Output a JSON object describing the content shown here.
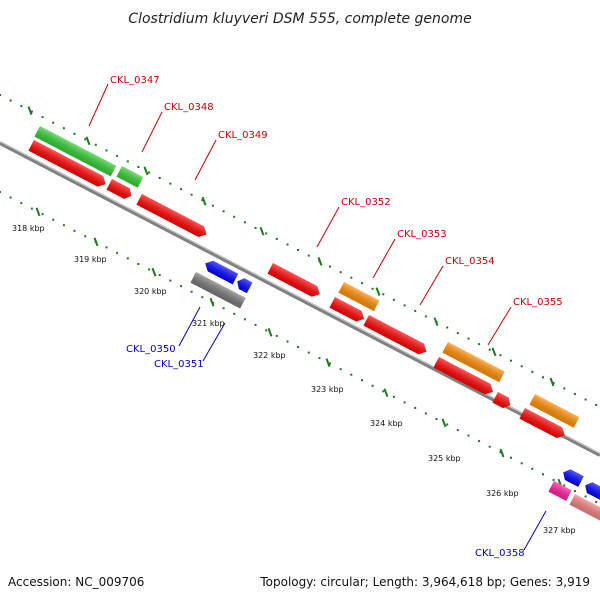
{
  "title": "Clostridium kluyveri DSM 555, complete genome",
  "accession": "Accession: NC_009706",
  "topology": "Topology: circular; Length: 3,964,618 bp; Genes: 3,919",
  "colors": {
    "backbone": "#808080",
    "tick": "#1a7a1a",
    "label_forward": "#cc0000",
    "label_reverse": "#0000cc",
    "gene_red": "#ff0000",
    "gene_green": "#33cc33",
    "gene_orange": "#ff8c00",
    "gene_blue": "#0000ff",
    "gene_grey": "#777777",
    "gene_magenta": "#ff1aa3",
    "gene_pink": "#f08080"
  },
  "ticks": [
    "318 kbp",
    "319 kbp",
    "320 kbp",
    "321 kbp",
    "322 kbp",
    "323 kbp",
    "324 kbp",
    "325 kbp",
    "326 kbp",
    "327 kbp"
  ],
  "gene_labels": [
    {
      "text": "CKL_0347",
      "strand": "forward"
    },
    {
      "text": "CKL_0348",
      "strand": "forward"
    },
    {
      "text": "CKL_0349",
      "strand": "forward"
    },
    {
      "text": "CKL_0352",
      "strand": "forward"
    },
    {
      "text": "CKL_0353",
      "strand": "forward"
    },
    {
      "text": "CKL_0354",
      "strand": "forward"
    },
    {
      "text": "CKL_0355",
      "strand": "forward"
    },
    {
      "text": "CKL_0350",
      "strand": "reverse"
    },
    {
      "text": "CKL_0351",
      "strand": "reverse"
    },
    {
      "text": "CKL_0358",
      "strand": "reverse"
    }
  ]
}
